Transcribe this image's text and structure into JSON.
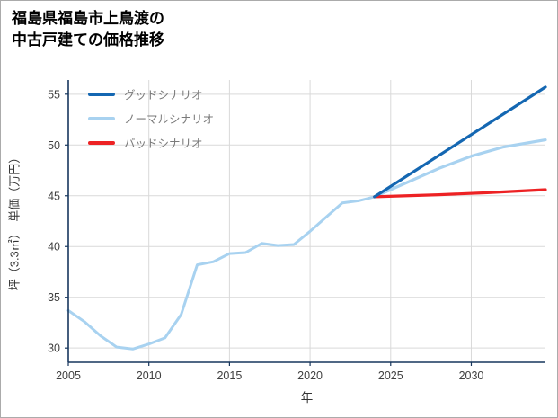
{
  "title": {
    "line1": "福島県福島市上鳥渡の",
    "line2": "中古戸建ての価格推移"
  },
  "colors": {
    "axis": "#17365d",
    "grid": "#d9d9d9",
    "tick_text": "#404040",
    "legend_text": "#7a7a7a",
    "good": "#1467b2",
    "normal": "#a8d2f0",
    "bad": "#ed2224"
  },
  "chart_data": {
    "type": "line",
    "title": "福島県福島市上鳥渡の中古戸建ての価格推移",
    "xlabel": "年",
    "ylabel": "坪（3.3㎡）　単価（万円）",
    "xlim": [
      2005,
      2034.6
    ],
    "ylim": [
      28.6,
      56.4
    ],
    "xticks": [
      2005,
      2010,
      2015,
      2020,
      2025,
      2030
    ],
    "yticks": [
      30,
      35,
      40,
      45,
      50,
      55
    ],
    "grid": true,
    "legend_position": "top-left",
    "series": [
      {
        "id": "history",
        "name": "",
        "legend": false,
        "color": "#a8d2f0",
        "width": 3,
        "x": [
          2005,
          2006,
          2007,
          2008,
          2009,
          2010,
          2011,
          2012,
          2013,
          2014,
          2015,
          2016,
          2017,
          2018,
          2019,
          2020,
          2021,
          2022,
          2023,
          2024
        ],
        "values": [
          33.7,
          32.6,
          31.2,
          30.1,
          29.9,
          30.4,
          31.0,
          33.3,
          38.2,
          38.5,
          39.3,
          39.4,
          40.3,
          40.1,
          40.2,
          41.5,
          42.9,
          44.3,
          44.5,
          44.9
        ]
      },
      {
        "id": "good",
        "name": "グッドシナリオ",
        "legend": true,
        "color": "#1467b2",
        "width": 3.2,
        "x": [
          2024,
          2034.6
        ],
        "values": [
          44.9,
          55.7
        ]
      },
      {
        "id": "normal",
        "name": "ノーマルシナリオ",
        "legend": true,
        "color": "#a8d2f0",
        "width": 3.2,
        "x": [
          2024,
          2026,
          2028,
          2030,
          2032,
          2034.6
        ],
        "values": [
          44.9,
          46.3,
          47.7,
          48.9,
          49.8,
          50.5
        ]
      },
      {
        "id": "bad",
        "name": "バッドシナリオ",
        "legend": true,
        "color": "#ed2224",
        "width": 3.2,
        "x": [
          2024,
          2028,
          2031,
          2034.6
        ],
        "values": [
          44.9,
          45.1,
          45.3,
          45.6
        ]
      }
    ]
  }
}
